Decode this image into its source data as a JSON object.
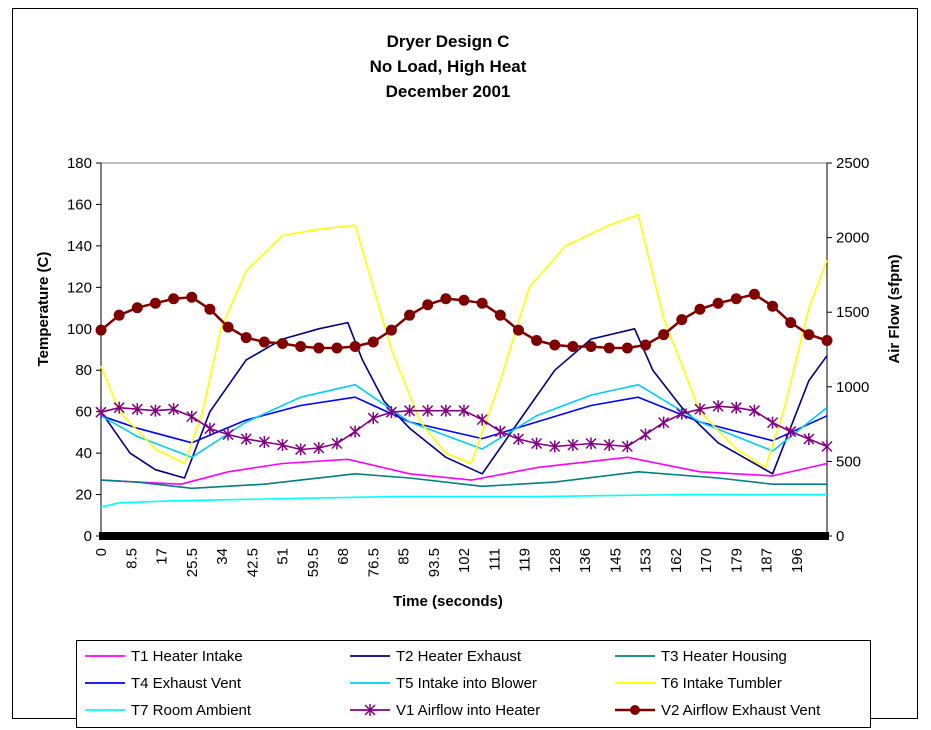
{
  "chart_data": {
    "type": "line",
    "title_lines": [
      "Dryer Design C",
      "No Load, High Heat",
      "December 2001"
    ],
    "xlabel": "Time (seconds)",
    "ylabel": "Temperature (C)",
    "y2label": "Air Flow (sfpm)",
    "x_ticks": [
      "0",
      "8.5",
      "17",
      "25.5",
      "34",
      "42.5",
      "51",
      "59.5",
      "68",
      "76.5",
      "85",
      "93.5",
      "102",
      "111",
      "119",
      "128",
      "136",
      "145",
      "153",
      "162",
      "170",
      "179",
      "187",
      "196"
    ],
    "xlim": [
      0,
      200
    ],
    "ylim": [
      0,
      180
    ],
    "y_ticks": [
      0,
      20,
      40,
      60,
      80,
      100,
      120,
      140,
      160,
      180
    ],
    "y2lim": [
      0,
      2500
    ],
    "y2_ticks": [
      0,
      500,
      1000,
      1500,
      2000,
      2500
    ],
    "legend_position": "bottom",
    "series": [
      {
        "name": "T1 Heater Intake",
        "color": "#ff00ff",
        "axis": "left",
        "marker": "none",
        "x": [
          0,
          10,
          22,
          35,
          50,
          68,
          85,
          102,
          120,
          145,
          165,
          185,
          200
        ],
        "y": [
          27,
          26,
          25,
          31,
          35,
          37,
          30,
          27,
          33,
          38,
          31,
          29,
          35
        ]
      },
      {
        "name": "T2 Heater Exhaust",
        "color": "#000080",
        "axis": "left",
        "marker": "none",
        "x": [
          0,
          8,
          15,
          23,
          30,
          40,
          50,
          60,
          68,
          72,
          78,
          85,
          95,
          105,
          115,
          125,
          135,
          147,
          152,
          160,
          170,
          185,
          195,
          200
        ],
        "y": [
          60,
          40,
          32,
          28,
          60,
          85,
          95,
          100,
          103,
          85,
          65,
          52,
          38,
          30,
          55,
          80,
          95,
          100,
          80,
          62,
          45,
          30,
          75,
          87
        ]
      },
      {
        "name": "T3 Heater Housing",
        "color": "#008080",
        "axis": "left",
        "marker": "none",
        "x": [
          0,
          10,
          25,
          45,
          70,
          85,
          105,
          125,
          148,
          170,
          185,
          200
        ],
        "y": [
          27,
          26,
          23,
          25,
          30,
          28,
          24,
          26,
          31,
          28,
          25,
          25
        ]
      },
      {
        "name": "T4 Exhaust Vent",
        "color": "#0000ff",
        "axis": "left",
        "marker": "none",
        "x": [
          0,
          10,
          25,
          40,
          55,
          70,
          85,
          105,
          120,
          135,
          148,
          165,
          185,
          200
        ],
        "y": [
          58,
          52,
          45,
          56,
          63,
          67,
          55,
          47,
          55,
          63,
          67,
          55,
          46,
          58
        ]
      },
      {
        "name": "T5 Intake into Blower",
        "color": "#00ccff",
        "axis": "left",
        "marker": "none",
        "x": [
          0,
          10,
          25,
          40,
          55,
          70,
          85,
          105,
          120,
          135,
          148,
          165,
          185,
          200
        ],
        "y": [
          58,
          48,
          38,
          55,
          67,
          73,
          55,
          42,
          58,
          68,
          73,
          55,
          41,
          62
        ]
      },
      {
        "name": "T6 Intake Tumbler",
        "color": "#ffff00",
        "axis": "left",
        "marker": "none",
        "x": [
          0,
          5,
          15,
          23,
          28,
          33,
          40,
          50,
          60,
          70,
          80,
          88,
          95,
          102,
          110,
          118,
          128,
          140,
          148,
          155,
          165,
          175,
          183,
          188,
          195,
          200
        ],
        "y": [
          82,
          60,
          42,
          35,
          60,
          100,
          128,
          145,
          148,
          150,
          90,
          55,
          40,
          35,
          75,
          120,
          140,
          150,
          155,
          105,
          60,
          42,
          33,
          60,
          110,
          133
        ]
      },
      {
        "name": "T7 Room Ambient",
        "color": "#00ffff",
        "axis": "left",
        "marker": "none",
        "x": [
          0,
          5,
          20,
          50,
          80,
          120,
          160,
          200
        ],
        "y": [
          14,
          16,
          17,
          18,
          19,
          19,
          20,
          20
        ]
      },
      {
        "name": "V1 Airflow into Heater",
        "color": "#800080",
        "axis": "right",
        "marker": "star",
        "x": [
          0,
          5,
          10,
          15,
          20,
          25,
          30,
          35,
          40,
          45,
          50,
          55,
          60,
          65,
          70,
          75,
          80,
          85,
          90,
          95,
          100,
          105,
          110,
          115,
          120,
          125,
          130,
          135,
          140,
          145,
          150,
          155,
          160,
          165,
          170,
          175,
          180,
          185,
          190,
          195,
          200
        ],
        "y": [
          830,
          860,
          850,
          840,
          850,
          800,
          720,
          680,
          650,
          630,
          610,
          580,
          590,
          620,
          700,
          790,
          830,
          840,
          840,
          840,
          840,
          780,
          700,
          650,
          620,
          600,
          610,
          620,
          610,
          600,
          680,
          760,
          820,
          850,
          870,
          860,
          840,
          760,
          700,
          650,
          600
        ]
      },
      {
        "name": "V2 Airflow Exhaust Vent",
        "color": "#800000",
        "axis": "right",
        "marker": "circle",
        "x": [
          0,
          5,
          10,
          15,
          20,
          25,
          30,
          35,
          40,
          45,
          50,
          55,
          60,
          65,
          70,
          75,
          80,
          85,
          90,
          95,
          100,
          105,
          110,
          115,
          120,
          125,
          130,
          135,
          140,
          145,
          150,
          155,
          160,
          165,
          170,
          175,
          180,
          185,
          190,
          195,
          200
        ],
        "y": [
          1380,
          1480,
          1530,
          1560,
          1590,
          1600,
          1520,
          1400,
          1330,
          1300,
          1290,
          1270,
          1260,
          1260,
          1270,
          1300,
          1380,
          1480,
          1550,
          1590,
          1580,
          1560,
          1480,
          1380,
          1310,
          1280,
          1270,
          1270,
          1260,
          1260,
          1280,
          1350,
          1450,
          1520,
          1560,
          1590,
          1620,
          1540,
          1430,
          1350,
          1310
        ]
      }
    ]
  }
}
